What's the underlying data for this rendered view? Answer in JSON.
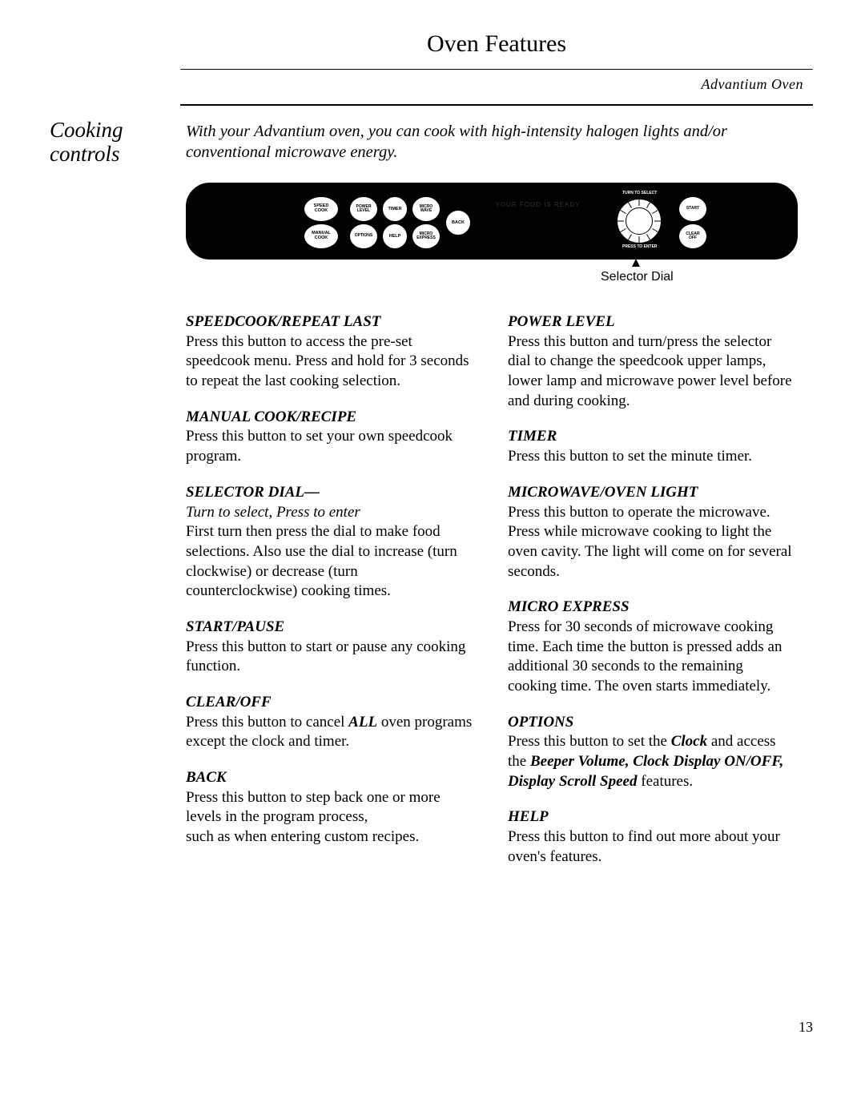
{
  "header": {
    "title": "Oven Features",
    "subtitle": "Advantium Oven",
    "side_heading": "Cooking\ncontrols",
    "intro": "With your Advantium oven, you can cook with high-intensity halogen lights and/or conventional microwave energy."
  },
  "panel": {
    "buttons": {
      "speed_cook": "SPEED\nCOOK",
      "manual_cook": "MANUAL\nCOOK",
      "power_level": "POWER\nLEVEL",
      "options": "OPTIONS",
      "timer": "TIMER",
      "help": "HELP",
      "micro_wave": "MICRO\nWAVE",
      "micro_express": "MICRO\nEXPRESS",
      "back": "BACK",
      "start": "START",
      "clear": "CLEAR\nOFF"
    },
    "display_text": "YOUR FOOD IS READY",
    "dial_top": "TURN TO SELECT",
    "dial_bottom": "PRESS TO ENTER",
    "caption": "Selector Dial"
  },
  "left_col": [
    {
      "h": "SPEEDCOOK/REPEAT LAST",
      "b": "Press this button to access the pre-set speedcook menu. Press and hold for 3 seconds to repeat the last cooking selection."
    },
    {
      "h": "MANUAL COOK/RECIPE",
      "b": "Press this button to set your own speedcook program."
    },
    {
      "h": "SELECTOR DIAL—",
      "sub": "Turn to select, Press to enter",
      "b": "First turn then press the dial to make food selections. Also use the dial to increase (turn clockwise) or decrease (turn counterclockwise) cooking times."
    },
    {
      "h": "START/PAUSE",
      "b": "Press this button to start or pause any cooking function."
    },
    {
      "h": "CLEAR/OFF",
      "b_html": "Press this button to cancel <b><i>ALL</i></b> oven programs except the clock and timer."
    },
    {
      "h": "BACK",
      "b": "Press this button to step back one or more levels in the program process,\nsuch as when entering custom recipes."
    }
  ],
  "right_col": [
    {
      "h": "POWER LEVEL",
      "b": "Press this button and turn/press the selector dial to change the speedcook upper lamps, lower lamp and microwave power level before and during cooking."
    },
    {
      "h": "TIMER",
      "b": "Press this button to set the minute timer."
    },
    {
      "h": "MICROWAVE/OVEN LIGHT",
      "b": "Press this button to operate the microwave. Press while microwave cooking to light the oven cavity. The light will come on for several seconds."
    },
    {
      "h": "MICRO EXPRESS",
      "b": "Press for 30 seconds of microwave cooking time. Each time the button is pressed adds an additional 30 seconds to the remaining cooking time. The oven starts immediately."
    },
    {
      "h": "OPTIONS",
      "b_html": "Press this button to set the <b><i>Clock</i></b> and access the <b><i>Beeper Volume, Clock Display ON/OFF, Display Scroll Speed</i></b>  features."
    },
    {
      "h": "HELP",
      "b": "Press this button to find out more about your oven's features."
    }
  ],
  "page_number": "13"
}
